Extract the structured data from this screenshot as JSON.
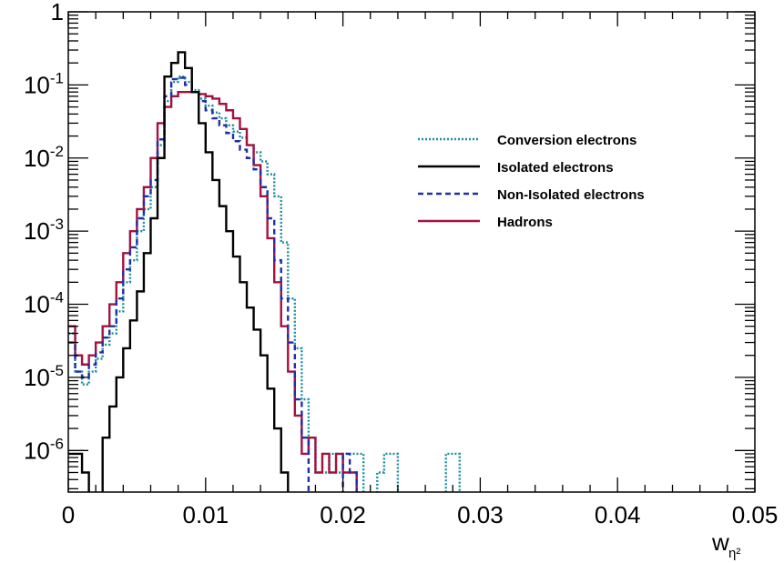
{
  "chart_data": {
    "type": "line",
    "step": true,
    "xlabel": "w",
    "xlabel_subscript": "η²",
    "ylabel": "",
    "xlim": [
      0,
      0.05
    ],
    "ylim": [
      2.7e-07,
      1
    ],
    "yscale": "log",
    "bin_width": 0.0005,
    "x_ticks": [
      {
        "value": 0,
        "label": "0"
      },
      {
        "value": 0.01,
        "label": "0.01"
      },
      {
        "value": 0.02,
        "label": "0.02"
      },
      {
        "value": 0.03,
        "label": "0.03"
      },
      {
        "value": 0.04,
        "label": "0.04"
      },
      {
        "value": 0.05,
        "label": "0.05"
      }
    ],
    "y_ticks": [
      {
        "value": 1,
        "base": "1",
        "exp": ""
      },
      {
        "value": 0.1,
        "base": "10",
        "exp": "-1"
      },
      {
        "value": 0.01,
        "base": "10",
        "exp": "-2"
      },
      {
        "value": 0.001,
        "base": "10",
        "exp": "-3"
      },
      {
        "value": 0.0001,
        "base": "10",
        "exp": "-4"
      },
      {
        "value": 1e-05,
        "base": "10",
        "exp": "-5"
      },
      {
        "value": 1e-06,
        "base": "10",
        "exp": "-6"
      }
    ],
    "legend_position": "center-right",
    "series": [
      {
        "name": "Conversion electrons",
        "color": "#1a8c9a",
        "dash": "dotted",
        "values": [
          4e-05,
          1.2e-05,
          8e-06,
          1.2e-05,
          1.8e-05,
          2.8e-05,
          4e-05,
          8e-05,
          0.0002,
          0.0004,
          0.001,
          0.002,
          0.004,
          0.015,
          0.06,
          0.11,
          0.13,
          0.11,
          0.085,
          0.065,
          0.052,
          0.042,
          0.035,
          0.028,
          0.023,
          0.019,
          0.015,
          0.012,
          0.009,
          0.006,
          0.003,
          0.0007,
          0.00012,
          2.5e-05,
          5e-06,
          1.5e-06,
          5e-07,
          5e-07,
          9e-07,
          5e-07,
          9e-07,
          9e-07,
          9e-07,
          0,
          0,
          5e-07,
          9e-07,
          9e-07,
          0,
          0,
          0,
          0,
          0,
          0,
          0,
          9e-07,
          9e-07,
          0,
          0,
          0,
          0,
          0,
          0,
          0,
          0,
          0,
          0,
          0,
          0,
          0,
          0,
          0,
          0,
          0,
          0,
          0,
          0,
          0,
          0,
          0,
          0,
          0,
          0,
          0,
          0,
          0,
          0,
          0,
          0,
          0,
          0,
          0,
          0,
          0,
          0,
          0,
          0,
          0,
          0,
          0
        ]
      },
      {
        "name": "Isolated electrons",
        "color": "#000000",
        "dash": "solid",
        "values": [
          9e-07,
          9e-07,
          5e-07,
          0,
          0,
          1.5e-06,
          4e-06,
          1e-05,
          2.5e-05,
          6e-05,
          0.00015,
          0.0005,
          0.0015,
          0.01,
          0.13,
          0.2,
          0.28,
          0.17,
          0.08,
          0.03,
          0.012,
          0.005,
          0.0022,
          0.001,
          0.00045,
          0.0002,
          9e-05,
          4.5e-05,
          2e-05,
          7e-06,
          2e-06,
          5e-07,
          0,
          0,
          0,
          0,
          0,
          0,
          0,
          0,
          0,
          0,
          0,
          0,
          0,
          0,
          0,
          0,
          0,
          0,
          0,
          0,
          0,
          0,
          0,
          0,
          0,
          0,
          0,
          0,
          0,
          0,
          0,
          0,
          0,
          0,
          0,
          0,
          0,
          0,
          0,
          0,
          0,
          0,
          0,
          0,
          0,
          0,
          0,
          0,
          0,
          0,
          0,
          0,
          0,
          0,
          0,
          0,
          0,
          0,
          0,
          0,
          0,
          0,
          0,
          0,
          0,
          0,
          0,
          0
        ]
      },
      {
        "name": "Non-Isolated electrons",
        "color": "#1f2fa8",
        "dash": "dashed",
        "values": [
          3e-05,
          1.2e-05,
          1e-05,
          1.5e-05,
          2.2e-05,
          3.5e-05,
          5e-05,
          0.00012,
          0.0003,
          0.0006,
          0.0015,
          0.003,
          0.005,
          0.018,
          0.07,
          0.12,
          0.125,
          0.1,
          0.08,
          0.06,
          0.045,
          0.035,
          0.028,
          0.022,
          0.017,
          0.013,
          0.01,
          0.007,
          0.004,
          0.0015,
          0.0004,
          0.00012,
          3e-05,
          5e-06,
          1.5e-06,
          0,
          0,
          0,
          0,
          0,
          9e-07,
          5e-07,
          0,
          0,
          0,
          0,
          0,
          0,
          0,
          0,
          0,
          0,
          0,
          0,
          0,
          0,
          0,
          0,
          0,
          0,
          0,
          0,
          0,
          0,
          0,
          0,
          0,
          0,
          0,
          0,
          0,
          0,
          0,
          0,
          0,
          0,
          0,
          0,
          0,
          0,
          0,
          0,
          0,
          0,
          0,
          0,
          0,
          0,
          0,
          0,
          0,
          0,
          0,
          0,
          0,
          0,
          0,
          0,
          0,
          0
        ]
      },
      {
        "name": "Hadrons",
        "color": "#a3123f",
        "dash": "solid",
        "values": [
          5e-05,
          2e-05,
          1.5e-05,
          2e-05,
          3e-05,
          5e-05,
          0.0001,
          0.0002,
          0.0005,
          0.001,
          0.002,
          0.004,
          0.01,
          0.03,
          0.05,
          0.07,
          0.08,
          0.08,
          0.08,
          0.075,
          0.07,
          0.065,
          0.055,
          0.045,
          0.035,
          0.025,
          0.015,
          0.008,
          0.003,
          0.0008,
          0.0002,
          5e-05,
          1.2e-05,
          3e-06,
          9e-07,
          1.5e-06,
          5e-07,
          9e-07,
          5e-07,
          9e-07,
          5e-07,
          5e-07,
          0,
          0,
          0,
          0,
          0,
          0,
          0,
          0,
          0,
          0,
          0,
          0,
          0,
          0,
          0,
          0,
          0,
          0,
          0,
          0,
          0,
          0,
          0,
          0,
          0,
          0,
          0,
          0,
          0,
          0,
          0,
          0,
          0,
          0,
          0,
          0,
          0,
          0,
          0,
          0,
          0,
          0,
          0,
          0,
          0,
          0,
          0,
          0,
          0,
          0,
          0,
          0,
          0,
          0,
          0,
          0,
          0,
          0
        ]
      }
    ]
  }
}
